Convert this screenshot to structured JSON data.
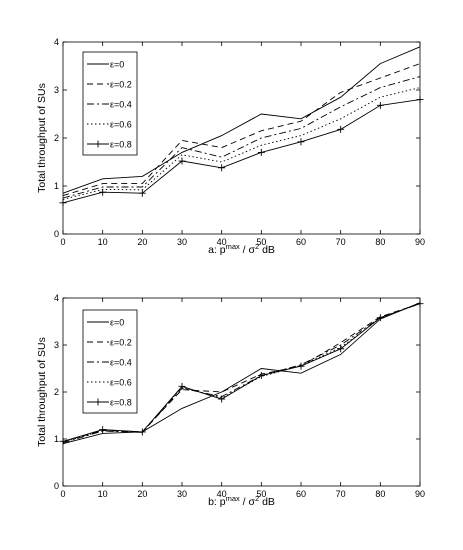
{
  "chart_data": [
    {
      "type": "line",
      "xlabel": "a: p^max / σ^2 dB",
      "xlabel_parts": {
        "prefix": "a: p",
        "sup1": "max",
        "mid": " / σ",
        "sup2": "2",
        "suffix": " dB"
      },
      "ylabel": "Total throughput  of SUs",
      "xlim": [
        0,
        90
      ],
      "ylim": [
        0,
        4
      ],
      "xticks": [
        0,
        10,
        20,
        30,
        40,
        50,
        60,
        70,
        80,
        90
      ],
      "yticks": [
        0,
        1,
        2,
        3,
        4
      ],
      "grid": false,
      "legend_position": "top-left",
      "x": [
        0,
        10,
        20,
        30,
        40,
        50,
        60,
        70,
        80,
        90
      ],
      "series": [
        {
          "name": "ε=0",
          "style": "solid",
          "marker": "none",
          "values": [
            0.85,
            1.15,
            1.2,
            1.7,
            2.05,
            2.5,
            2.4,
            2.85,
            3.55,
            3.9
          ]
        },
        {
          "name": "ε=0.2",
          "style": "dashed",
          "marker": "none",
          "values": [
            0.8,
            1.05,
            1.05,
            1.95,
            1.8,
            2.15,
            2.35,
            2.95,
            3.25,
            3.55
          ]
        },
        {
          "name": "ε=0.4",
          "style": "dashdot",
          "marker": "none",
          "values": [
            0.75,
            0.98,
            0.98,
            1.8,
            1.6,
            2.0,
            2.2,
            2.65,
            3.05,
            3.28
          ]
        },
        {
          "name": "ε=0.6",
          "style": "dotted",
          "marker": "none",
          "values": [
            0.72,
            0.93,
            0.92,
            1.65,
            1.5,
            1.85,
            2.05,
            2.4,
            2.85,
            3.05
          ]
        },
        {
          "name": "ε=0.8",
          "style": "solid",
          "marker": "plus",
          "values": [
            0.65,
            0.87,
            0.85,
            1.52,
            1.38,
            1.7,
            1.92,
            2.18,
            2.68,
            2.8
          ]
        }
      ]
    },
    {
      "type": "line",
      "xlabel": "b: p^max / σ^2 dB",
      "xlabel_parts": {
        "prefix": "b: p",
        "sup1": "max",
        "mid": " / σ",
        "sup2": "2",
        "suffix": " dB"
      },
      "ylabel": "Total throughput  of SUs",
      "xlim": [
        0,
        90
      ],
      "ylim": [
        0,
        4
      ],
      "xticks": [
        0,
        10,
        20,
        30,
        40,
        50,
        60,
        70,
        80,
        90
      ],
      "yticks": [
        0,
        1,
        2,
        3,
        4
      ],
      "grid": false,
      "legend_position": "top-left",
      "x": [
        0,
        10,
        20,
        30,
        40,
        50,
        60,
        70,
        80,
        90
      ],
      "series": [
        {
          "name": "ε=0",
          "style": "solid",
          "marker": "none",
          "values": [
            0.9,
            1.12,
            1.15,
            1.65,
            2.0,
            2.5,
            2.4,
            2.8,
            3.55,
            3.9
          ]
        },
        {
          "name": "ε=0.2",
          "style": "dashed",
          "marker": "none",
          "values": [
            0.95,
            1.18,
            1.15,
            2.05,
            2.0,
            2.38,
            2.55,
            3.05,
            3.6,
            3.88
          ]
        },
        {
          "name": "ε=0.4",
          "style": "dashdot",
          "marker": "none",
          "values": [
            0.92,
            1.17,
            1.14,
            2.08,
            1.9,
            2.35,
            2.58,
            3.0,
            3.58,
            3.88
          ]
        },
        {
          "name": "ε=0.6",
          "style": "dotted",
          "marker": "none",
          "values": [
            0.93,
            1.18,
            1.15,
            2.1,
            1.87,
            2.33,
            2.56,
            2.95,
            3.57,
            3.88
          ]
        },
        {
          "name": "ε=0.8",
          "style": "solid",
          "marker": "plus",
          "values": [
            0.95,
            1.2,
            1.15,
            2.12,
            1.85,
            2.35,
            2.55,
            2.92,
            3.58,
            3.88
          ]
        }
      ]
    }
  ]
}
